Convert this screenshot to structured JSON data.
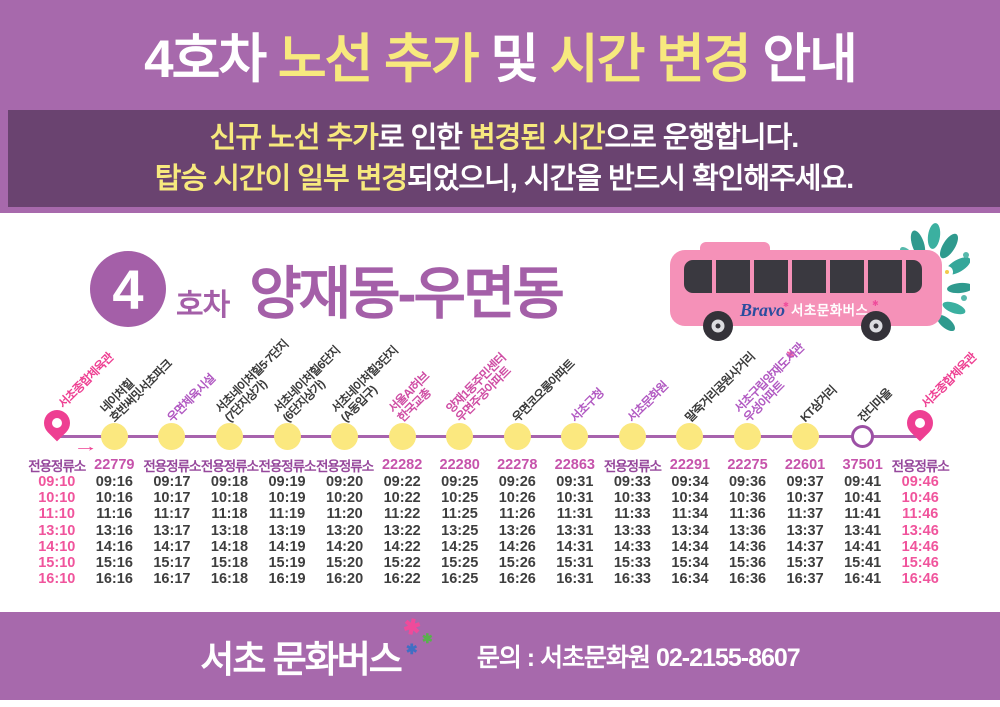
{
  "banner": {
    "title_segments": [
      {
        "text": "4호차 ",
        "color": "white"
      },
      {
        "text": "노선 추가",
        "color": "yellow"
      },
      {
        "text": " 및 ",
        "color": "white"
      },
      {
        "text": "시간 변경",
        "color": "yellow"
      },
      {
        "text": " 안내",
        "color": "white"
      }
    ]
  },
  "notice": {
    "line1": [
      {
        "text": "신규 노선 추가",
        "color": "yellow"
      },
      {
        "text": "로 인한 ",
        "color": "white"
      },
      {
        "text": "변경된 시간",
        "color": "yellow"
      },
      {
        "text": "으로 운행합니다.",
        "color": "white"
      }
    ],
    "line2": [
      {
        "text": "탑승 시간이 일부 변경",
        "color": "yellow"
      },
      {
        "text": "되었으니, 시간을 반드시 확인해주세요.",
        "color": "white"
      }
    ]
  },
  "route": {
    "number": "4",
    "suffix": "호차",
    "name": "양재동-우면동",
    "bus_brand_script": "Bravo",
    "bus_brand_text": "서초문화버스"
  },
  "timeline": {
    "direction_arrow": "→",
    "stops": [
      {
        "name_lines": [
          "서초종합체육관"
        ],
        "marker": "pin",
        "label_color": "pink",
        "code": "전용정류소"
      },
      {
        "name_lines": [
          "네이처힐",
          "호반써밋서초파크"
        ],
        "marker": "dot",
        "label_color": "dark",
        "code": "22779"
      },
      {
        "name_lines": [
          "우면체육시설"
        ],
        "marker": "dot",
        "label_color": "violet",
        "code": "전용정류소"
      },
      {
        "name_lines": [
          "서초네이처힐5·7단지",
          "(7단지상가)"
        ],
        "marker": "dot",
        "label_color": "dark",
        "code": "전용정류소"
      },
      {
        "name_lines": [
          "서초네이처힐6단지",
          "(6단지상가)"
        ],
        "marker": "dot",
        "label_color": "dark",
        "code": "전용정류소"
      },
      {
        "name_lines": [
          "서초네이처힐3단지",
          "(A동입구)"
        ],
        "marker": "dot",
        "label_color": "dark",
        "code": "전용정류소"
      },
      {
        "name_lines": [
          "서울AI허브",
          "한국교총"
        ],
        "marker": "dot",
        "label_color": "magenta",
        "code": "22282"
      },
      {
        "name_lines": [
          "양재1동주민센터",
          "우면주공아파트"
        ],
        "marker": "dot",
        "label_color": "magenta",
        "code": "22280"
      },
      {
        "name_lines": [
          "우면코오롱아파트"
        ],
        "marker": "dot",
        "label_color": "dark",
        "code": "22278"
      },
      {
        "name_lines": [
          "서초구청"
        ],
        "marker": "dot",
        "label_color": "violet",
        "code": "22863"
      },
      {
        "name_lines": [
          "서초문화원"
        ],
        "marker": "dot",
        "label_color": "violet",
        "code": "전용정류소"
      },
      {
        "name_lines": [
          "말죽거리공원사거리"
        ],
        "marker": "dot",
        "label_color": "dark",
        "code": "22291"
      },
      {
        "name_lines": [
          "서초구립양재도서관",
          "우성아파트"
        ],
        "marker": "dot",
        "label_color": "violet",
        "code": "22275"
      },
      {
        "name_lines": [
          "KT삼거리"
        ],
        "marker": "dot",
        "label_color": "dark",
        "code": "22601"
      },
      {
        "name_lines": [
          "잔디마을"
        ],
        "marker": "ring",
        "label_color": "dark",
        "code": "37501"
      },
      {
        "name_lines": [
          "서초종합체육관"
        ],
        "marker": "pin",
        "label_color": "pink",
        "code": "전용정류소"
      }
    ]
  },
  "timetable": {
    "rows": [
      [
        "09:10",
        "09:16",
        "09:17",
        "09:18",
        "09:19",
        "09:20",
        "09:22",
        "09:25",
        "09:26",
        "09:31",
        "09:33",
        "09:34",
        "09:36",
        "09:37",
        "09:41",
        "09:46"
      ],
      [
        "10:10",
        "10:16",
        "10:17",
        "10:18",
        "10:19",
        "10:20",
        "10:22",
        "10:25",
        "10:26",
        "10:31",
        "10:33",
        "10:34",
        "10:36",
        "10:37",
        "10:41",
        "10:46"
      ],
      [
        "11:10",
        "11:16",
        "11:17",
        "11:18",
        "11:19",
        "11:20",
        "11:22",
        "11:25",
        "11:26",
        "11:31",
        "11:33",
        "11:34",
        "11:36",
        "11:37",
        "11:41",
        "11:46"
      ],
      [
        "13:10",
        "13:16",
        "13:17",
        "13:18",
        "13:19",
        "13:20",
        "13:22",
        "13:25",
        "13:26",
        "13:31",
        "13:33",
        "13:34",
        "13:36",
        "13:37",
        "13:41",
        "13:46"
      ],
      [
        "14:10",
        "14:16",
        "14:17",
        "14:18",
        "14:19",
        "14:20",
        "14:22",
        "14:25",
        "14:26",
        "14:31",
        "14:33",
        "14:34",
        "14:36",
        "14:37",
        "14:41",
        "14:46"
      ],
      [
        "15:10",
        "15:16",
        "15:17",
        "15:18",
        "15:19",
        "15:20",
        "15:22",
        "15:25",
        "15:26",
        "15:31",
        "15:33",
        "15:34",
        "15:36",
        "15:37",
        "15:41",
        "15:46"
      ],
      [
        "16:10",
        "16:16",
        "16:17",
        "16:18",
        "16:19",
        "16:20",
        "16:22",
        "16:25",
        "16:26",
        "16:31",
        "16:33",
        "16:34",
        "16:36",
        "16:37",
        "16:41",
        "16:46"
      ]
    ]
  },
  "footer": {
    "logo": "서초 문화버스",
    "contact": "문의 : 서초문화원 02-2155-8607"
  },
  "colors": {
    "banner_purple": "#a769ac",
    "notice_dark_purple": "#6a4370",
    "highlight_yellow": "#f7e97e",
    "brand_purple": "#a45fa8",
    "pin_pink": "#ee3f92",
    "timeline_line": "#a763ad",
    "stop_dot_yellow": "#fbe87f",
    "ring_border": "#9c50a5",
    "code_text_purple": "#96489c",
    "code_number_magenta": "#c653ab",
    "time_pink": "#f0549c",
    "time_dark": "#3e3e3e",
    "bus_pink": "#f591b8",
    "foliage_teal": "#2f9a8e"
  }
}
